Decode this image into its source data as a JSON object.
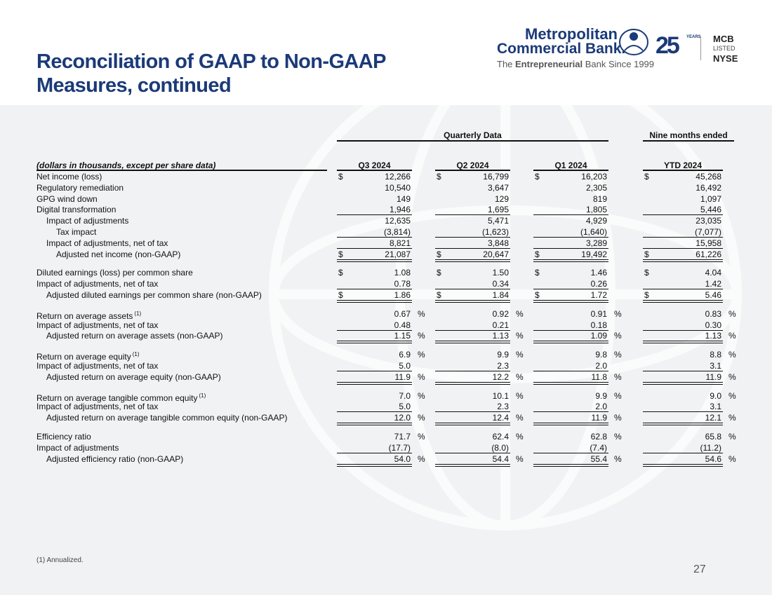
{
  "header": {
    "title": [
      "Reconciliation of GAAP to Non-GAAP",
      "Measures, continued"
    ],
    "logo": {
      "name_line1": "Metropolitan",
      "name_line2": "Commercial Bank.",
      "tagline": [
        "The ",
        "Entrepreneurial",
        " Bank Since 1999"
      ],
      "anniversary": "25",
      "years": "YEARS",
      "ticker": "MCB",
      "listed": "LISTED",
      "exchange": "NYSE"
    }
  },
  "table": {
    "group_headers": [
      "Quarterly Data",
      "Nine months ended"
    ],
    "columns": [
      "(dollars in thousands, except per share data)",
      "Q3 2024",
      "Q2 2024",
      "Q1 2024",
      "YTD 2024"
    ],
    "sections": [
      {
        "rows": [
          {
            "label": "Net income (loss)",
            "prefix": "$",
            "values": [
              "12,266",
              "16,799",
              "16,203",
              "45,268"
            ]
          },
          {
            "label": "Regulatory remediation",
            "values": [
              "10,540",
              "3,647",
              "2,305",
              "16,492"
            ]
          },
          {
            "label": "GPG wind down",
            "values": [
              "149",
              "129",
              "819",
              "1,097"
            ]
          },
          {
            "label": "Digital transformation",
            "values": [
              "1,946",
              "1,695",
              "1,805",
              "5,446"
            ]
          },
          {
            "label": "Impact of adjustments",
            "values": [
              "12,635",
              "5,471",
              "4,929",
              "23,035"
            ]
          },
          {
            "label": "Tax impact",
            "values": [
              "(3,814)",
              "(1,623)",
              "(1,640)",
              "(7,077)"
            ]
          },
          {
            "label": "Impact of adjustments, net of tax",
            "values": [
              "8,821",
              "3,848",
              "3,289",
              "15,958"
            ]
          },
          {
            "label": "Adjusted net income (non-GAAP)",
            "prefix": "$",
            "values": [
              "21,087",
              "20,647",
              "19,492",
              "61,226"
            ]
          }
        ]
      },
      {
        "rows": [
          {
            "label": "Diluted earnings (loss) per common share",
            "prefix": "$",
            "values": [
              "1.08",
              "1.50",
              "1.46",
              "4.04"
            ]
          },
          {
            "label": "Impact of adjustments, net of tax",
            "values": [
              "0.78",
              "0.34",
              "0.26",
              "1.42"
            ]
          },
          {
            "label": "Adjusted diluted earnings per common share (non-GAAP)",
            "prefix": "$",
            "values": [
              "1.86",
              "1.84",
              "1.72",
              "5.46"
            ]
          }
        ]
      },
      {
        "rows": [
          {
            "label": "Return on average assets",
            "note": "(1)",
            "values": [
              "0.67",
              "0.92",
              "0.91",
              "0.83"
            ],
            "suffix": "%"
          },
          {
            "label": "Impact of adjustments, net of tax",
            "values": [
              "0.48",
              "0.21",
              "0.18",
              "0.30"
            ]
          },
          {
            "label": "Adjusted return on average assets (non-GAAP)",
            "values": [
              "1.15",
              "1.13",
              "1.09",
              "1.13"
            ],
            "suffix": "%"
          }
        ]
      },
      {
        "rows": [
          {
            "label": "Return on average equity",
            "note": "(1)",
            "values": [
              "6.9",
              "9.9",
              "9.8",
              "8.8"
            ],
            "suffix": "%"
          },
          {
            "label": "Impact of adjustments, net of tax",
            "values": [
              "5.0",
              "2.3",
              "2.0",
              "3.1"
            ]
          },
          {
            "label": "Adjusted return on average equity (non-GAAP)",
            "values": [
              "11.9",
              "12.2",
              "11.8",
              "11.9"
            ],
            "suffix": "%"
          }
        ]
      },
      {
        "rows": [
          {
            "label": "Return on average tangible common equity",
            "note": "(1)",
            "values": [
              "7.0",
              "10.1",
              "9.9",
              "9.0"
            ],
            "suffix": "%"
          },
          {
            "label": "Impact of adjustments, net of tax",
            "values": [
              "5.0",
              "2.3",
              "2.0",
              "3.1"
            ]
          },
          {
            "label": "Adjusted return on average tangible common equity (non-GAAP)",
            "values": [
              "12.0",
              "12.4",
              "11.9",
              "12.1"
            ],
            "suffix": "%"
          }
        ]
      },
      {
        "rows": [
          {
            "label": "Efficiency ratio",
            "values": [
              "71.7",
              "62.4",
              "62.8",
              "65.8"
            ],
            "suffix": "%"
          },
          {
            "label": "Impact of adjustments",
            "values": [
              "(17.7)",
              "(8.0)",
              "(7.4)",
              "(11.2)"
            ]
          },
          {
            "label": "Adjusted efficiency ratio (non-GAAP)",
            "values": [
              "54.0",
              "54.4",
              "55.4",
              "54.6"
            ],
            "suffix": "%"
          }
        ]
      }
    ]
  },
  "footnote": "(1) Annualized.",
  "page_number": "27"
}
